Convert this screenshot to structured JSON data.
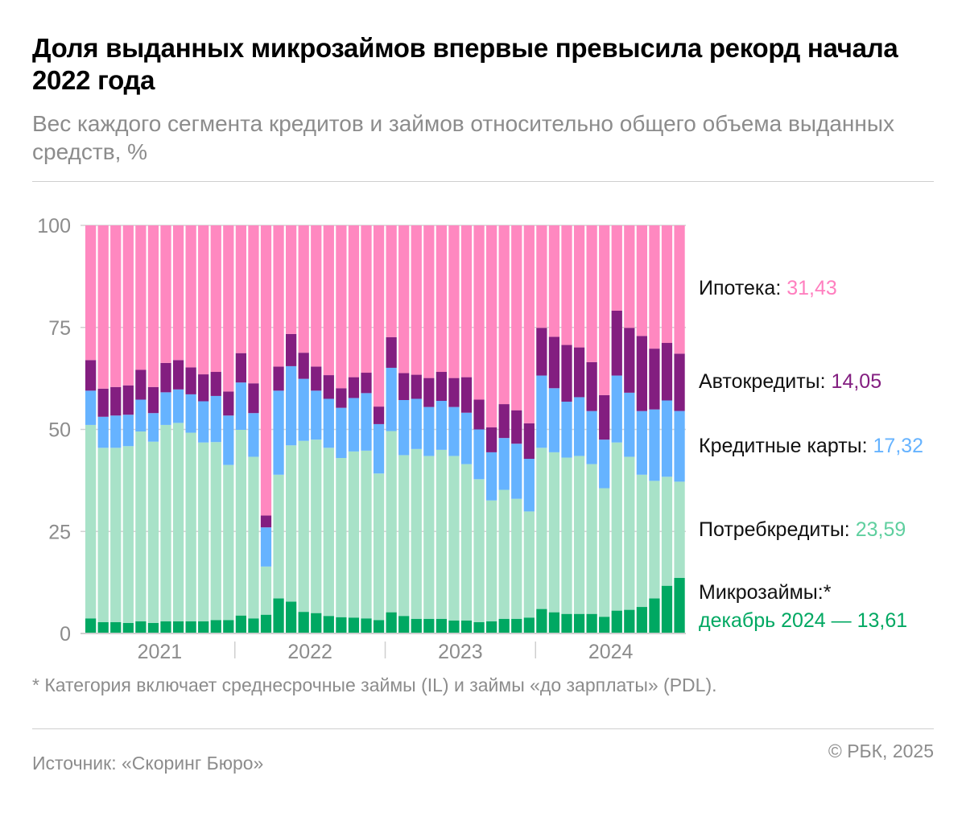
{
  "title": "Доля выданных микрозаймов впервые превысила рекорд начала 2022 года",
  "subtitle": "Вес каждого сегмента кредитов и займов относительно общего объема выданных средств, %",
  "footnote": "* Категория включает среднесрочные займы (IL) и займы «до зарплаты» (PDL).",
  "source": "Источник: «Скоринг Бюро»",
  "copyright": "© РБК, 2025",
  "labels": {
    "mortgage": {
      "name": "Ипотека: ",
      "value": "31,43"
    },
    "auto": {
      "name": "Автокредиты: ",
      "value": "14,05"
    },
    "cards": {
      "name": "Кредитные карты: ",
      "value": "17,32"
    },
    "consumer": {
      "name": "Потребкредиты: ",
      "value": "23,59"
    },
    "micro": {
      "name": "Микрозаймы:*",
      "value": "декабрь 2024 — 13,61"
    }
  },
  "chart_data": {
    "type": "bar",
    "stacked": true,
    "ylim": [
      0,
      100
    ],
    "yticks": [
      "0",
      "25",
      "50",
      "75",
      "100"
    ],
    "year_labels": [
      "2021",
      "2022",
      "2023",
      "2024"
    ],
    "x": "monthly, January 2021 – December 2024",
    "grid": true,
    "series": [
      {
        "name": "Микрозаймы",
        "color": "#00a862",
        "values": [
          3.7,
          2.8,
          2.8,
          2.6,
          3.0,
          2.6,
          3.0,
          3.0,
          3.0,
          3.0,
          3.3,
          3.3,
          4.4,
          3.7,
          4.6,
          8.6,
          7.8,
          5.3,
          5.0,
          4.3,
          4.0,
          3.9,
          3.7,
          3.3,
          5.2,
          4.3,
          3.6,
          3.6,
          3.6,
          3.2,
          3.2,
          2.8,
          3.0,
          3.6,
          3.6,
          3.9,
          6.0,
          5.2,
          4.8,
          4.8,
          4.8,
          4.1,
          5.6,
          5.8,
          6.5,
          8.6,
          11.7,
          13.61
        ]
      },
      {
        "name": "Потребкредиты",
        "color": "#a8e2c8",
        "values": [
          47.4,
          42.7,
          42.7,
          43.3,
          46.5,
          44.4,
          48.1,
          48.6,
          46.2,
          43.8,
          43.6,
          38.0,
          45.5,
          39.6,
          11.8,
          30.3,
          38.3,
          41.9,
          42.5,
          41.2,
          39.0,
          40.7,
          41.1,
          35.9,
          44.4,
          39.4,
          41.6,
          39.9,
          41.4,
          40.3,
          38.3,
          35.0,
          29.6,
          31.6,
          29.4,
          26.0,
          39.5,
          39.2,
          38.3,
          38.7,
          36.7,
          31.5,
          41.2,
          37.5,
          32.4,
          28.8,
          26.7,
          23.59
        ]
      },
      {
        "name": "Кредитные карты",
        "color": "#66b3ff",
        "values": [
          8.4,
          7.6,
          7.9,
          7.7,
          7.8,
          7.0,
          8.0,
          8.2,
          9.4,
          10.1,
          11.3,
          12.1,
          11.6,
          10.7,
          9.6,
          20.6,
          19.4,
          15.2,
          12.0,
          12.0,
          12.3,
          13.1,
          14.1,
          12.1,
          15.5,
          13.5,
          12.3,
          12.0,
          12.0,
          12.0,
          12.6,
          12.2,
          11.8,
          12.7,
          13.5,
          12.9,
          17.7,
          15.7,
          13.7,
          14.4,
          13.0,
          11.9,
          16.4,
          15.7,
          15.6,
          17.5,
          18.7,
          17.32
        ]
      },
      {
        "name": "Автокредиты",
        "color": "#831e80",
        "values": [
          7.5,
          6.9,
          7.0,
          7.2,
          7.3,
          6.4,
          7.2,
          7.2,
          6.6,
          6.6,
          5.9,
          5.9,
          7.2,
          7.3,
          2.9,
          5.9,
          7.9,
          6.4,
          5.9,
          5.8,
          4.8,
          5.1,
          5.0,
          4.3,
          7.5,
          6.6,
          5.9,
          7.1,
          7.1,
          7.1,
          8.7,
          7.3,
          6.1,
          8.3,
          8.2,
          8.7,
          11.7,
          12.6,
          13.9,
          12.2,
          12.0,
          10.9,
          15.9,
          15.9,
          18.4,
          14.9,
          14.1,
          14.05
        ]
      },
      {
        "name": "Ипотека",
        "color": "#ff88c0",
        "values": [
          33.0,
          40.0,
          39.6,
          39.2,
          35.4,
          39.6,
          33.7,
          33.0,
          34.8,
          36.5,
          35.9,
          40.7,
          31.3,
          38.7,
          71.1,
          34.6,
          26.6,
          31.2,
          34.6,
          36.7,
          39.9,
          37.2,
          36.1,
          44.4,
          27.4,
          36.2,
          36.6,
          37.4,
          35.9,
          37.4,
          37.2,
          42.7,
          49.5,
          43.8,
          45.3,
          48.5,
          25.1,
          27.3,
          29.3,
          29.9,
          33.5,
          41.6,
          20.9,
          25.1,
          27.1,
          30.2,
          28.8,
          31.43
        ]
      }
    ]
  }
}
